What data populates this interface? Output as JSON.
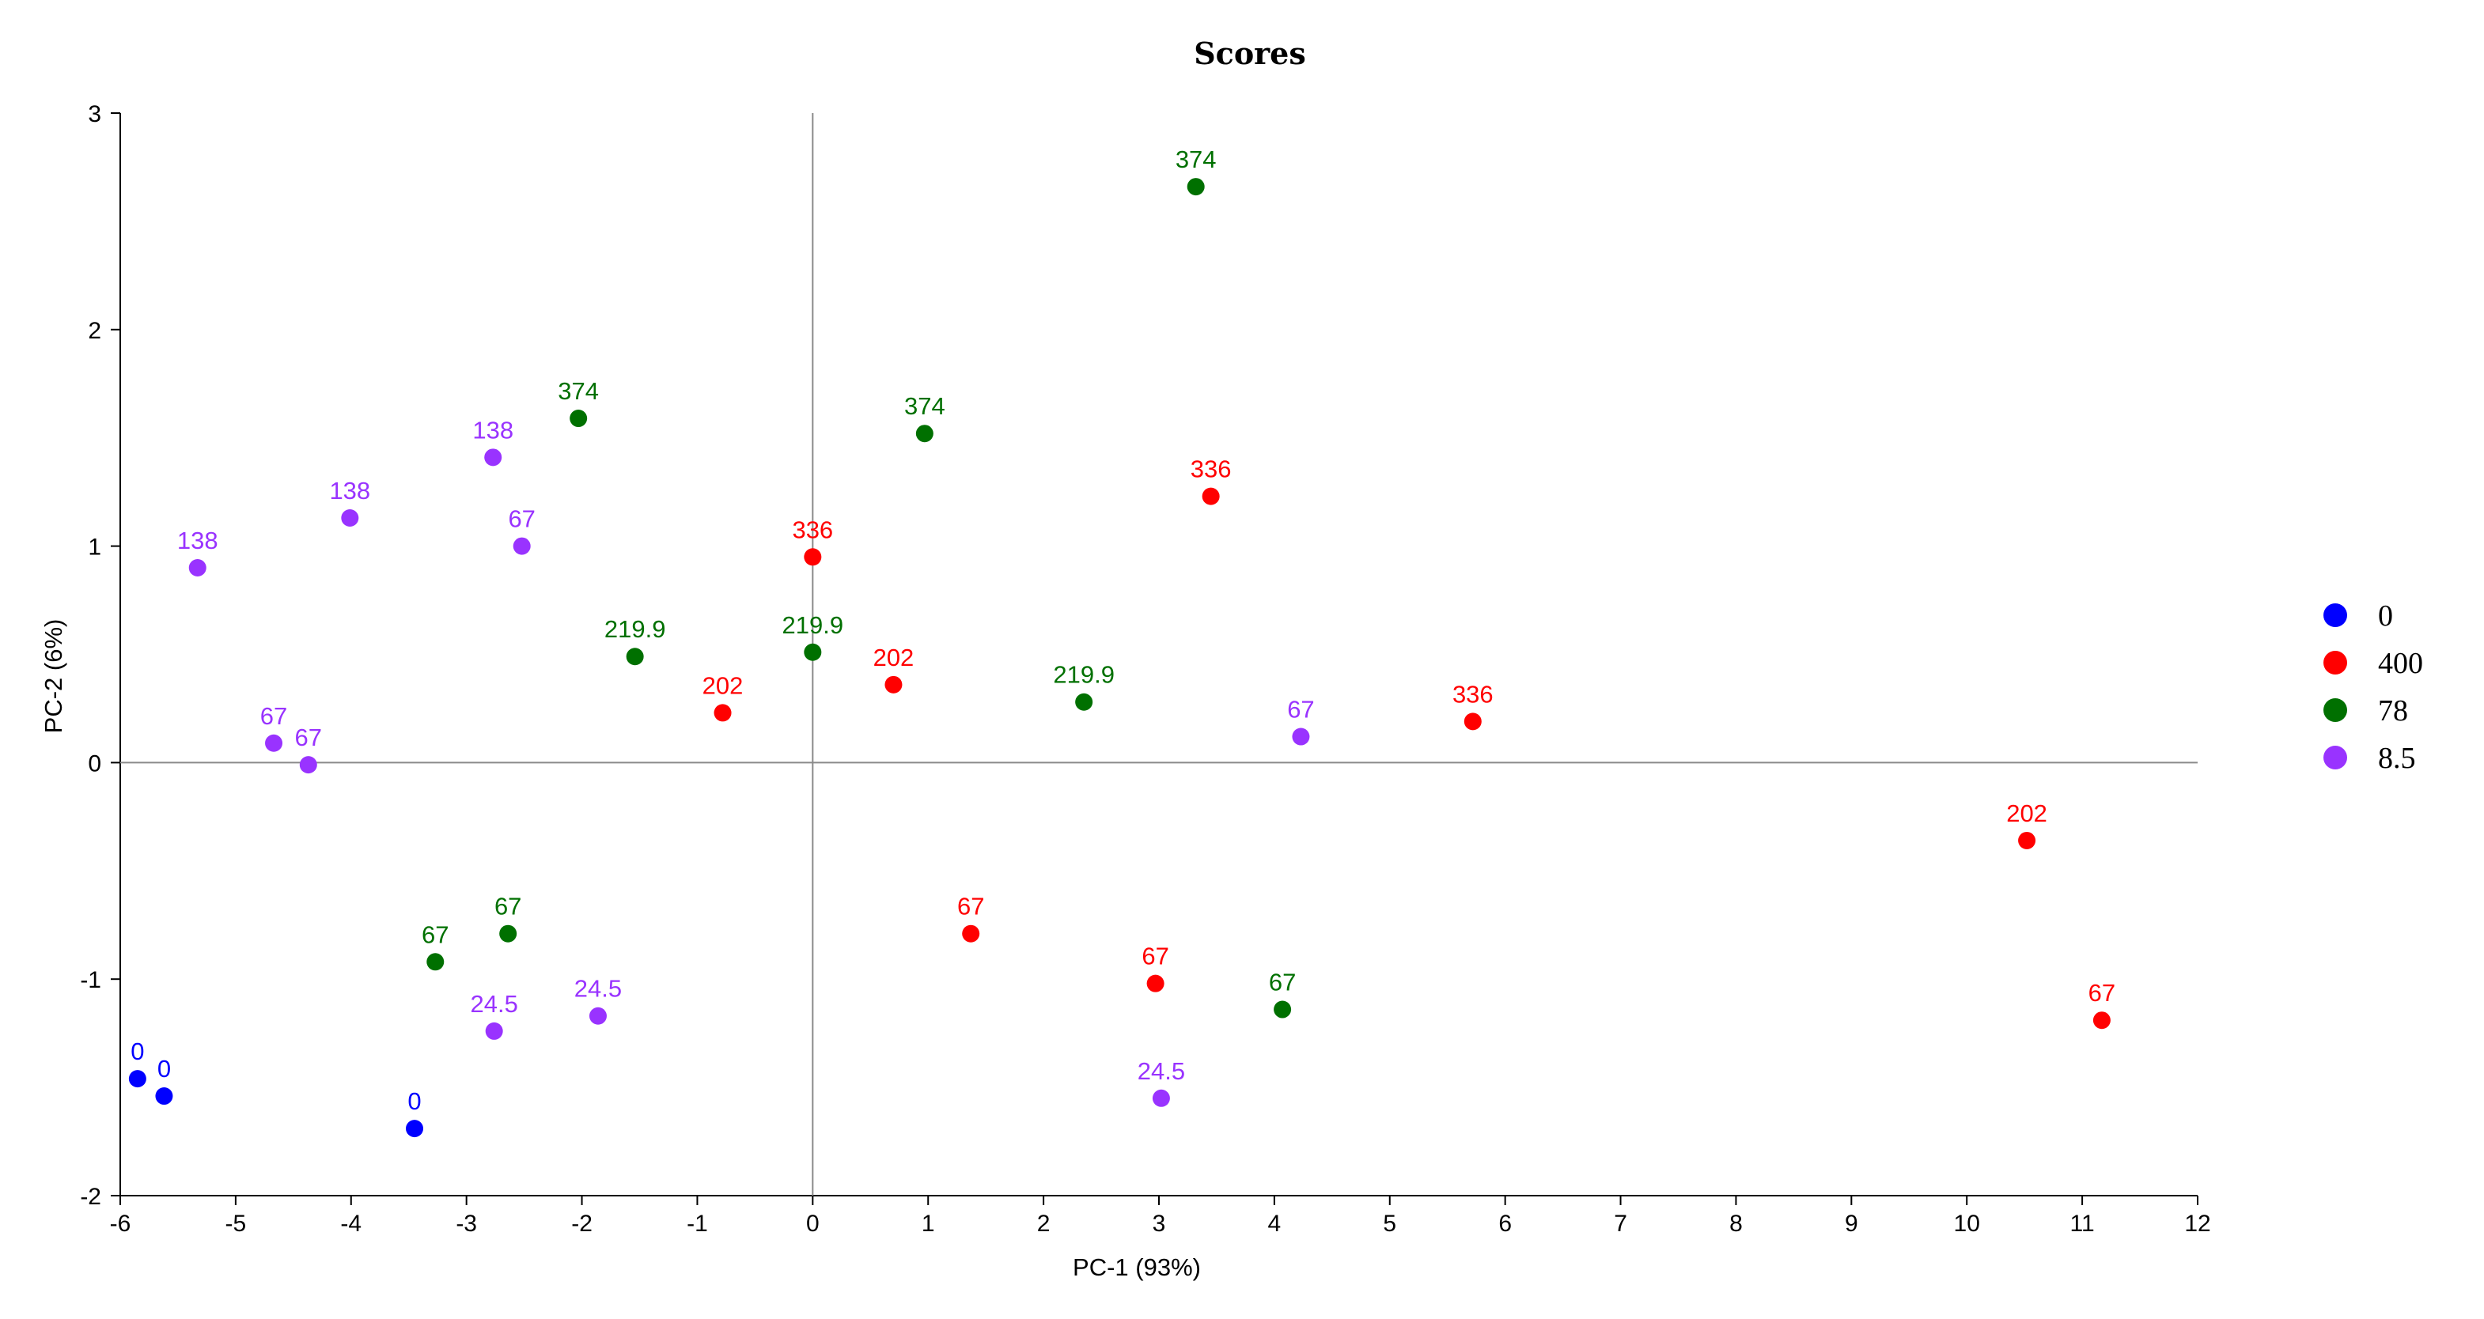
{
  "chart_data": {
    "type": "scatter",
    "title": "Scores",
    "xlabel": "PC-1 (93%)",
    "ylabel": "PC-2 (6%)",
    "xlim": [
      -6,
      12
    ],
    "ylim": [
      -2,
      3
    ],
    "x_ticks": [
      -6,
      -5,
      -4,
      -3,
      -2,
      -1,
      0,
      1,
      2,
      3,
      4,
      5,
      6,
      7,
      8,
      9,
      10,
      11,
      12
    ],
    "y_ticks": [
      -2,
      -1,
      0,
      1,
      2,
      3
    ],
    "zero_lines": true,
    "grid": false,
    "legend_position": "right",
    "series": [
      {
        "name": "0",
        "color": "#0000FF",
        "points": [
          {
            "x": -5.85,
            "y": -1.46,
            "label": "0"
          },
          {
            "x": -5.62,
            "y": -1.54,
            "label": "0"
          },
          {
            "x": -3.45,
            "y": -1.69,
            "label": "0"
          }
        ]
      },
      {
        "name": "400",
        "color": "#FF0000",
        "points": [
          {
            "x": -0.78,
            "y": 0.23,
            "label": "202"
          },
          {
            "x": 0.0,
            "y": 0.95,
            "label": "336"
          },
          {
            "x": 0.7,
            "y": 0.36,
            "label": "202"
          },
          {
            "x": 3.45,
            "y": 1.23,
            "label": "336"
          },
          {
            "x": 5.72,
            "y": 0.19,
            "label": "336"
          },
          {
            "x": 1.37,
            "y": -0.79,
            "label": "67"
          },
          {
            "x": 2.97,
            "y": -1.02,
            "label": "67"
          },
          {
            "x": 10.52,
            "y": -0.36,
            "label": "202"
          },
          {
            "x": 11.17,
            "y": -1.19,
            "label": "67"
          }
        ]
      },
      {
        "name": "78",
        "color": "#007000",
        "points": [
          {
            "x": 3.32,
            "y": 2.66,
            "label": "374"
          },
          {
            "x": -2.03,
            "y": 1.59,
            "label": "374"
          },
          {
            "x": 0.97,
            "y": 1.52,
            "label": "374"
          },
          {
            "x": -1.54,
            "y": 0.49,
            "label": "219.9"
          },
          {
            "x": 0.0,
            "y": 0.51,
            "label": "219.9"
          },
          {
            "x": 2.35,
            "y": 0.28,
            "label": "219.9"
          },
          {
            "x": -3.27,
            "y": -0.92,
            "label": "67"
          },
          {
            "x": -2.64,
            "y": -0.79,
            "label": "67"
          },
          {
            "x": 4.07,
            "y": -1.14,
            "label": "67"
          }
        ]
      },
      {
        "name": "8.5",
        "color": "#9933FF",
        "points": [
          {
            "x": -5.33,
            "y": 0.9,
            "label": "138"
          },
          {
            "x": -4.01,
            "y": 1.13,
            "label": "138"
          },
          {
            "x": -2.77,
            "y": 1.41,
            "label": "138"
          },
          {
            "x": -2.52,
            "y": 1.0,
            "label": "67"
          },
          {
            "x": -4.67,
            "y": 0.09,
            "label": "67"
          },
          {
            "x": -4.37,
            "y": -0.01,
            "label": "67"
          },
          {
            "x": -2.76,
            "y": -1.24,
            "label": "24.5"
          },
          {
            "x": -1.86,
            "y": -1.17,
            "label": "24.5"
          },
          {
            "x": 3.02,
            "y": -1.55,
            "label": "24.5"
          },
          {
            "x": 4.23,
            "y": 0.12,
            "label": "67"
          }
        ]
      }
    ]
  }
}
